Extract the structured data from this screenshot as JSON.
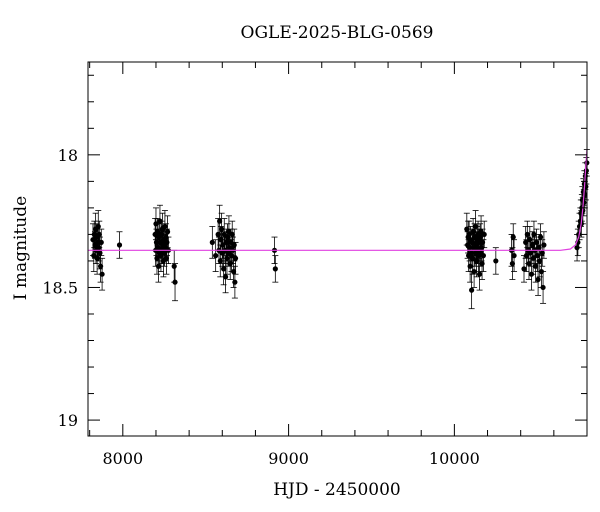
{
  "chart_data": {
    "type": "scatter",
    "title": "OGLE-2025-BLG-0569",
    "xlabel": "HJD - 2450000",
    "ylabel": "I magnitude",
    "xlim": [
      7790,
      10800
    ],
    "ylim": [
      19.06,
      17.65
    ],
    "y_inverted": true,
    "x_ticks": [
      8000,
      9000,
      10000
    ],
    "y_ticks": [
      18,
      18.5,
      19
    ],
    "x_tick_labels": [
      "8000",
      "9000",
      "10000"
    ],
    "y_tick_labels": [
      "18",
      "18.5",
      "19"
    ],
    "grid": false,
    "colors": {
      "points": "#000000",
      "model": "#e040e0"
    },
    "model_curve": {
      "baseline_mag": 18.36,
      "t0": 10830,
      "points": [
        [
          7790,
          18.36
        ],
        [
          8500,
          18.36
        ],
        [
          9500,
          18.36
        ],
        [
          10500,
          18.36
        ],
        [
          10640,
          18.36
        ],
        [
          10700,
          18.355
        ],
        [
          10730,
          18.34
        ],
        [
          10750,
          18.31
        ],
        [
          10765,
          18.26
        ],
        [
          10775,
          18.2
        ],
        [
          10785,
          18.12
        ],
        [
          10793,
          18.04
        ],
        [
          10800,
          17.98
        ]
      ]
    },
    "series": [
      {
        "values": [
          [
            7820,
            18.32,
            0.06
          ],
          [
            7825,
            18.38,
            0.06
          ],
          [
            7828,
            18.3,
            0.05
          ],
          [
            7832,
            18.34,
            0.05
          ],
          [
            7836,
            18.28,
            0.06
          ],
          [
            7838,
            18.36,
            0.05
          ],
          [
            7842,
            18.31,
            0.05
          ],
          [
            7845,
            18.39,
            0.06
          ],
          [
            7848,
            18.33,
            0.05
          ],
          [
            7852,
            18.27,
            0.06
          ],
          [
            7855,
            18.35,
            0.05
          ],
          [
            7858,
            18.3,
            0.05
          ],
          [
            7862,
            18.37,
            0.06
          ],
          [
            7866,
            18.42,
            0.06
          ],
          [
            7870,
            18.33,
            0.05
          ],
          [
            7875,
            18.45,
            0.06
          ],
          [
            7980,
            18.34,
            0.05
          ],
          [
            8195,
            18.3,
            0.06
          ],
          [
            8198,
            18.36,
            0.06
          ],
          [
            8200,
            18.26,
            0.06
          ],
          [
            8203,
            18.33,
            0.05
          ],
          [
            8206,
            18.39,
            0.06
          ],
          [
            8209,
            18.29,
            0.05
          ],
          [
            8212,
            18.35,
            0.05
          ],
          [
            8215,
            18.42,
            0.06
          ],
          [
            8218,
            18.31,
            0.05
          ],
          [
            8221,
            18.37,
            0.05
          ],
          [
            8224,
            18.25,
            0.06
          ],
          [
            8227,
            18.33,
            0.05
          ],
          [
            8230,
            18.38,
            0.06
          ],
          [
            8233,
            18.3,
            0.05
          ],
          [
            8236,
            18.36,
            0.05
          ],
          [
            8239,
            18.28,
            0.06
          ],
          [
            8242,
            18.34,
            0.05
          ],
          [
            8245,
            18.4,
            0.06
          ],
          [
            8248,
            18.32,
            0.05
          ],
          [
            8251,
            18.37,
            0.05
          ],
          [
            8254,
            18.27,
            0.06
          ],
          [
            8257,
            18.35,
            0.05
          ],
          [
            8260,
            18.31,
            0.05
          ],
          [
            8263,
            18.39,
            0.06
          ],
          [
            8266,
            18.33,
            0.05
          ],
          [
            8270,
            18.29,
            0.06
          ],
          [
            8275,
            18.36,
            0.05
          ],
          [
            8310,
            18.42,
            0.06
          ],
          [
            8315,
            18.48,
            0.07
          ],
          [
            8540,
            18.33,
            0.06
          ],
          [
            8560,
            18.38,
            0.06
          ],
          [
            8575,
            18.3,
            0.06
          ],
          [
            8580,
            18.36,
            0.05
          ],
          [
            8584,
            18.25,
            0.06
          ],
          [
            8588,
            18.4,
            0.06
          ],
          [
            8592,
            18.32,
            0.05
          ],
          [
            8596,
            18.28,
            0.06
          ],
          [
            8600,
            18.37,
            0.05
          ],
          [
            8604,
            18.34,
            0.05
          ],
          [
            8608,
            18.43,
            0.06
          ],
          [
            8612,
            18.3,
            0.06
          ],
          [
            8616,
            18.36,
            0.05
          ],
          [
            8620,
            18.46,
            0.06
          ],
          [
            8624,
            18.33,
            0.05
          ],
          [
            8628,
            18.39,
            0.06
          ],
          [
            8632,
            18.31,
            0.05
          ],
          [
            8636,
            18.37,
            0.05
          ],
          [
            8640,
            18.29,
            0.06
          ],
          [
            8644,
            18.35,
            0.05
          ],
          [
            8648,
            18.41,
            0.06
          ],
          [
            8652,
            18.33,
            0.05
          ],
          [
            8656,
            18.38,
            0.06
          ],
          [
            8660,
            18.3,
            0.05
          ],
          [
            8664,
            18.36,
            0.05
          ],
          [
            8668,
            18.44,
            0.06
          ],
          [
            8672,
            18.34,
            0.06
          ],
          [
            8676,
            18.48,
            0.06
          ],
          [
            8680,
            18.39,
            0.06
          ],
          [
            8915,
            18.36,
            0.05
          ],
          [
            8920,
            18.43,
            0.05
          ],
          [
            10075,
            18.28,
            0.06
          ],
          [
            10080,
            18.34,
            0.05
          ],
          [
            10083,
            18.31,
            0.06
          ],
          [
            10086,
            18.38,
            0.06
          ],
          [
            10089,
            18.3,
            0.05
          ],
          [
            10092,
            18.35,
            0.05
          ],
          [
            10095,
            18.42,
            0.06
          ],
          [
            10098,
            18.32,
            0.05
          ],
          [
            10101,
            18.37,
            0.05
          ],
          [
            10104,
            18.51,
            0.07
          ],
          [
            10107,
            18.33,
            0.05
          ],
          [
            10110,
            18.39,
            0.06
          ],
          [
            10113,
            18.29,
            0.05
          ],
          [
            10116,
            18.35,
            0.05
          ],
          [
            10119,
            18.44,
            0.06
          ],
          [
            10122,
            18.31,
            0.05
          ],
          [
            10125,
            18.37,
            0.05
          ],
          [
            10128,
            18.27,
            0.06
          ],
          [
            10131,
            18.34,
            0.05
          ],
          [
            10134,
            18.4,
            0.06
          ],
          [
            10137,
            18.32,
            0.05
          ],
          [
            10140,
            18.36,
            0.05
          ],
          [
            10143,
            18.3,
            0.05
          ],
          [
            10146,
            18.38,
            0.06
          ],
          [
            10149,
            18.33,
            0.05
          ],
          [
            10152,
            18.45,
            0.06
          ],
          [
            10155,
            18.31,
            0.05
          ],
          [
            10158,
            18.37,
            0.05
          ],
          [
            10161,
            18.29,
            0.06
          ],
          [
            10164,
            18.35,
            0.05
          ],
          [
            10167,
            18.41,
            0.06
          ],
          [
            10170,
            18.33,
            0.05
          ],
          [
            10175,
            18.38,
            0.06
          ],
          [
            10180,
            18.3,
            0.05
          ],
          [
            10250,
            18.4,
            0.05
          ],
          [
            10345,
            18.36,
            0.06
          ],
          [
            10350,
            18.41,
            0.06
          ],
          [
            10355,
            18.31,
            0.05
          ],
          [
            10360,
            18.38,
            0.06
          ],
          [
            10420,
            18.43,
            0.05
          ],
          [
            10430,
            18.33,
            0.06
          ],
          [
            10435,
            18.38,
            0.06
          ],
          [
            10440,
            18.3,
            0.05
          ],
          [
            10445,
            18.36,
            0.05
          ],
          [
            10450,
            18.41,
            0.06
          ],
          [
            10455,
            18.32,
            0.05
          ],
          [
            10460,
            18.37,
            0.05
          ],
          [
            10465,
            18.45,
            0.06
          ],
          [
            10470,
            18.34,
            0.05
          ],
          [
            10475,
            18.39,
            0.06
          ],
          [
            10480,
            18.3,
            0.05
          ],
          [
            10485,
            18.36,
            0.05
          ],
          [
            10490,
            18.42,
            0.06
          ],
          [
            10495,
            18.33,
            0.05
          ],
          [
            10500,
            18.38,
            0.06
          ],
          [
            10505,
            18.47,
            0.06
          ],
          [
            10510,
            18.35,
            0.05
          ],
          [
            10515,
            18.4,
            0.06
          ],
          [
            10520,
            18.31,
            0.05
          ],
          [
            10525,
            18.44,
            0.06
          ],
          [
            10530,
            18.37,
            0.05
          ],
          [
            10535,
            18.5,
            0.06
          ],
          [
            10540,
            18.34,
            0.05
          ],
          [
            10740,
            18.35,
            0.05
          ],
          [
            10745,
            18.33,
            0.05
          ],
          [
            10750,
            18.3,
            0.05
          ],
          [
            10755,
            18.27,
            0.05
          ],
          [
            10760,
            18.25,
            0.05
          ],
          [
            10763,
            18.22,
            0.05
          ],
          [
            10766,
            18.26,
            0.05
          ],
          [
            10769,
            18.2,
            0.05
          ],
          [
            10772,
            18.17,
            0.05
          ],
          [
            10775,
            18.21,
            0.05
          ],
          [
            10778,
            18.14,
            0.05
          ],
          [
            10781,
            18.18,
            0.05
          ],
          [
            10784,
            18.11,
            0.05
          ],
          [
            10787,
            18.15,
            0.05
          ],
          [
            10790,
            18.08,
            0.05
          ],
          [
            10793,
            18.12,
            0.05
          ],
          [
            10796,
            18.06,
            0.05
          ],
          [
            10799,
            18.03,
            0.05
          ]
        ]
      }
    ]
  }
}
